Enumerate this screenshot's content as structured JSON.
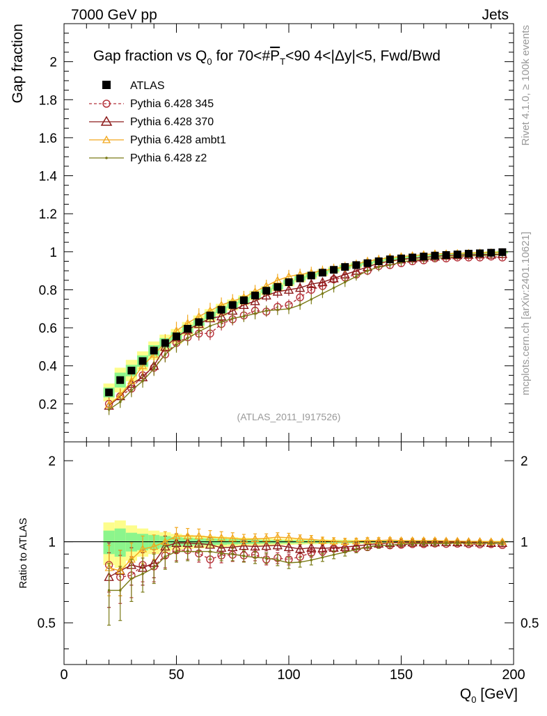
{
  "chart_data": {
    "type": "scatter",
    "header": {
      "left": "7000 GeV pp",
      "right": "Jets"
    },
    "title": "Gap fraction vs Q_0 for 70<#P_T<90  4<|Δy|<5, Fwd/Bwd",
    "title_parts": {
      "a": "Gap fraction vs Q",
      "a_sub": "0",
      "b": " for 70<#",
      "b_over": "P",
      "b_sub": "T",
      "c": "<90  4<|Δy|<5, Fwd/Bwd"
    },
    "ylabel": "Gap fraction",
    "ratio_ylabel": "Ratio to ATLAS",
    "xlabel": "Q_0 [GeV]",
    "xlabel_parts": {
      "a": "Q",
      "sub": "0",
      "b": " [GeV]"
    },
    "xlim": [
      0,
      200
    ],
    "ylim": [
      0,
      2.2
    ],
    "ratio_ylim": [
      0.35,
      2.35
    ],
    "x_ticks": [
      0,
      50,
      100,
      150,
      200
    ],
    "y_ticks": [
      0.2,
      0.4,
      0.6,
      0.8,
      1,
      1.2,
      1.4,
      1.6,
      1.8,
      2
    ],
    "y_ticks_labels": [
      "0.2",
      "0.4",
      "0.6",
      "0.8",
      "1",
      "1.2",
      "1.4",
      "1.6",
      "1.8",
      "2"
    ],
    "ratio_ticks": [
      0.5,
      1,
      2
    ],
    "side_label_top": "Rivet 4.1.0, ≥ 100k events",
    "side_label_bottom": "mcplots.cern.ch [arXiv:2401.10621]",
    "reference": "(ATLAS_2011_I917526)",
    "x": [
      20,
      25,
      30,
      35,
      40,
      45,
      50,
      55,
      60,
      65,
      70,
      75,
      80,
      85,
      90,
      95,
      100,
      105,
      110,
      115,
      120,
      125,
      130,
      135,
      140,
      145,
      150,
      155,
      160,
      165,
      170,
      175,
      180,
      185,
      190,
      195
    ],
    "series": [
      {
        "name": "ATLAS",
        "color": "#000000",
        "marker": "square",
        "values": [
          0.26,
          0.325,
          0.375,
          0.425,
          0.48,
          0.52,
          0.555,
          0.595,
          0.63,
          0.665,
          0.695,
          0.72,
          0.745,
          0.77,
          0.795,
          0.815,
          0.84,
          0.86,
          0.875,
          0.89,
          0.905,
          0.92,
          0.93,
          0.94,
          0.95,
          0.96,
          0.965,
          0.97,
          0.975,
          0.98,
          0.983,
          0.986,
          0.99,
          0.992,
          0.995,
          0.998
        ]
      },
      {
        "name": "Pythia 6.428 345",
        "color": "#b5323a",
        "marker": "circle",
        "values": [
          0.2,
          0.24,
          0.28,
          0.35,
          0.39,
          0.46,
          0.52,
          0.55,
          0.57,
          0.57,
          0.62,
          0.645,
          0.665,
          0.69,
          0.685,
          0.71,
          0.72,
          0.76,
          0.8,
          0.82,
          0.855,
          0.865,
          0.88,
          0.9,
          0.925,
          0.93,
          0.94,
          0.95,
          0.955,
          0.965,
          0.965,
          0.97,
          0.97,
          0.97,
          0.975,
          0.97
        ]
      },
      {
        "name": "Pythia 6.428 370",
        "color": "#8c1a1a",
        "marker": "triangle",
        "values": [
          0.19,
          0.24,
          0.305,
          0.34,
          0.4,
          0.5,
          0.55,
          0.59,
          0.62,
          0.65,
          0.66,
          0.69,
          0.72,
          0.74,
          0.77,
          0.79,
          0.8,
          0.81,
          0.83,
          0.84,
          0.86,
          0.88,
          0.9,
          0.92,
          0.94,
          0.95,
          0.96,
          0.965,
          0.97,
          0.975,
          0.98,
          0.982,
          0.984,
          0.986,
          0.985,
          0.988
        ]
      },
      {
        "name": "Pythia 6.428 ambt1",
        "color": "#f2a81d",
        "marker": "triangle",
        "values": [
          0.195,
          0.245,
          0.32,
          0.4,
          0.46,
          0.52,
          0.585,
          0.625,
          0.66,
          0.69,
          0.72,
          0.74,
          0.76,
          0.79,
          0.82,
          0.85,
          0.87,
          0.88,
          0.89,
          0.9,
          0.91,
          0.92,
          0.935,
          0.95,
          0.96,
          0.97,
          0.975,
          0.98,
          0.985,
          0.99,
          0.99,
          0.992,
          0.993,
          0.995,
          0.996,
          0.997
        ]
      },
      {
        "name": "Pythia 6.428 z2",
        "color": "#7a7a16",
        "marker": "dot",
        "values": [
          0.17,
          0.21,
          0.27,
          0.32,
          0.385,
          0.46,
          0.51,
          0.545,
          0.58,
          0.61,
          0.63,
          0.65,
          0.66,
          0.675,
          0.69,
          0.695,
          0.7,
          0.72,
          0.75,
          0.78,
          0.81,
          0.84,
          0.87,
          0.9,
          0.92,
          0.93,
          0.945,
          0.955,
          0.96,
          0.965,
          0.97,
          0.975,
          0.978,
          0.98,
          0.982,
          0.985
        ]
      }
    ],
    "ratio_series": [
      {
        "name": "Pythia 6.428 345",
        "values": [
          0.82,
          0.74,
          0.75,
          0.82,
          0.81,
          0.89,
          0.93,
          0.93,
          0.905,
          0.86,
          0.89,
          0.895,
          0.89,
          0.895,
          0.86,
          0.87,
          0.86,
          0.88,
          0.91,
          0.92,
          0.945,
          0.94,
          0.945,
          0.955,
          0.975,
          0.97,
          0.975,
          0.98,
          0.98,
          0.985,
          0.982,
          0.984,
          0.98,
          0.978,
          0.98,
          0.972
        ]
      },
      {
        "name": "Pythia 6.428 370",
        "values": [
          0.74,
          0.78,
          0.82,
          0.8,
          0.835,
          0.96,
          0.99,
          0.99,
          0.985,
          0.975,
          0.95,
          0.955,
          0.965,
          0.96,
          0.965,
          0.97,
          0.955,
          0.94,
          0.95,
          0.945,
          0.95,
          0.955,
          0.965,
          0.975,
          0.985,
          0.99,
          0.995,
          0.995,
          0.995,
          0.995,
          0.997,
          0.996,
          0.994,
          0.994,
          0.99,
          0.99
        ]
      },
      {
        "name": "Pythia 6.428 ambt1",
        "values": [
          0.8,
          0.78,
          0.86,
          0.94,
          0.96,
          1.0,
          1.05,
          1.05,
          1.05,
          1.04,
          1.035,
          1.03,
          1.02,
          1.025,
          1.03,
          1.04,
          1.035,
          1.025,
          1.02,
          1.01,
          1.005,
          1.0,
          1.005,
          1.01,
          1.01,
          1.015,
          1.01,
          1.01,
          1.01,
          1.01,
          1.007,
          1.006,
          1.003,
          1.003,
          1.001,
          1.0
        ]
      },
      {
        "name": "Pythia 6.428 z2",
        "values": [
          0.66,
          0.66,
          0.73,
          0.76,
          0.8,
          0.88,
          0.92,
          0.92,
          0.92,
          0.92,
          0.905,
          0.9,
          0.885,
          0.875,
          0.87,
          0.855,
          0.835,
          0.84,
          0.855,
          0.875,
          0.895,
          0.915,
          0.935,
          0.955,
          0.97,
          0.97,
          0.98,
          0.985,
          0.985,
          0.985,
          0.986,
          0.989,
          0.988,
          0.988,
          0.987,
          0.987
        ]
      }
    ],
    "ratio_errors": [
      0.17,
      0.15,
      0.13,
      0.11,
      0.1,
      0.09,
      0.08,
      0.07,
      0.065,
      0.06,
      0.055,
      0.05,
      0.045,
      0.045,
      0.04,
      0.04,
      0.04,
      0.035,
      0.035,
      0.03,
      0.03,
      0.03,
      0.025,
      0.025,
      0.025,
      0.02,
      0.02,
      0.02,
      0.02,
      0.02,
      0.015,
      0.015,
      0.015,
      0.015,
      0.015,
      0.015
    ],
    "band_stat": [
      0.1,
      0.12,
      0.08,
      0.07,
      0.06,
      0.05,
      0.04,
      0.035,
      0.03,
      0.028,
      0.025,
      0.022,
      0.02,
      0.018,
      0.016,
      0.015,
      0.014,
      0.013,
      0.012,
      0.011,
      0.01,
      0.01,
      0.009,
      0.008,
      0.008,
      0.007,
      0.007,
      0.006,
      0.006,
      0.006,
      0.005,
      0.005,
      0.005,
      0.005,
      0.005,
      0.005
    ],
    "band_total": [
      0.18,
      0.2,
      0.15,
      0.12,
      0.1,
      0.085,
      0.07,
      0.06,
      0.055,
      0.05,
      0.045,
      0.04,
      0.035,
      0.032,
      0.03,
      0.028,
      0.026,
      0.024,
      0.022,
      0.02,
      0.018,
      0.017,
      0.016,
      0.015,
      0.014,
      0.013,
      0.012,
      0.011,
      0.01,
      0.01,
      0.009,
      0.009,
      0.008,
      0.008,
      0.008,
      0.008
    ],
    "band_colors": {
      "stat": "#8cf58c",
      "total": "#fdfd8c"
    }
  }
}
